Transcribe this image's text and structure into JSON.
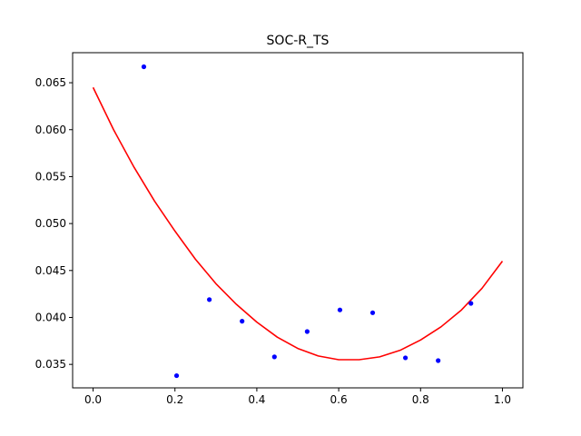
{
  "chart_data": {
    "type": "scatter",
    "title": "SOC-R_TS",
    "xlabel": "",
    "ylabel": "",
    "xlim": [
      -0.05,
      1.05
    ],
    "ylim": [
      0.0325,
      0.0682
    ],
    "grid": false,
    "legend": "none",
    "xticks": [
      0.0,
      0.2,
      0.4,
      0.6,
      0.8,
      1.0
    ],
    "xtick_labels": [
      "0.0",
      "0.2",
      "0.4",
      "0.6",
      "0.8",
      "1.0"
    ],
    "yticks": [
      0.035,
      0.04,
      0.045,
      0.05,
      0.055,
      0.06,
      0.065
    ],
    "ytick_labels": [
      "0.035",
      "0.040",
      "0.045",
      "0.050",
      "0.055",
      "0.060",
      "0.065"
    ],
    "series": [
      {
        "kind": "scatter",
        "color": "#0000ff",
        "x": [
          0.124,
          0.204,
          0.284,
          0.364,
          0.443,
          0.523,
          0.603,
          0.683,
          0.763,
          0.843,
          0.923
        ],
        "y": [
          0.0667,
          0.0338,
          0.0419,
          0.0396,
          0.0358,
          0.0385,
          0.0408,
          0.0405,
          0.0357,
          0.0354,
          0.0415
        ]
      },
      {
        "kind": "line",
        "color": "#ff0000",
        "x": [
          0.0,
          0.05,
          0.1,
          0.15,
          0.2,
          0.25,
          0.3,
          0.35,
          0.4,
          0.45,
          0.5,
          0.55,
          0.6,
          0.65,
          0.7,
          0.75,
          0.8,
          0.85,
          0.9,
          0.95,
          1.0
        ],
        "y": [
          0.0645,
          0.06,
          0.056,
          0.0524,
          0.0492,
          0.0462,
          0.0436,
          0.0414,
          0.0395,
          0.0379,
          0.0367,
          0.0359,
          0.0355,
          0.0355,
          0.0358,
          0.0365,
          0.0376,
          0.039,
          0.0408,
          0.0431,
          0.046
        ]
      }
    ]
  }
}
